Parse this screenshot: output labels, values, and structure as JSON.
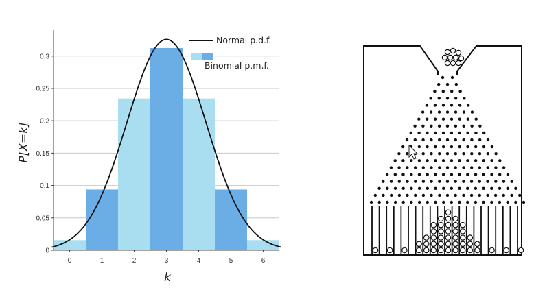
{
  "chart_data": {
    "type": "bar",
    "title": "",
    "xlabel": "k",
    "ylabel": "P[X=k]",
    "categories": [
      "0",
      "1",
      "2",
      "3",
      "4",
      "5",
      "6"
    ],
    "x": [
      0,
      1,
      2,
      3,
      4,
      5,
      6
    ],
    "xlim": [
      -0.5,
      6.5
    ],
    "ylim": [
      0,
      0.34
    ],
    "yticks": [
      0,
      0.05,
      0.1,
      0.15,
      0.2,
      0.25,
      0.3
    ],
    "ytick_labels": [
      "0",
      "0.05",
      "0.1",
      "0.15",
      "0.2",
      "0.25",
      "0.3"
    ],
    "grid": true,
    "series": [
      {
        "name": "Binomial p.m.f.",
        "kind": "bar",
        "values": [
          0.0156,
          0.0938,
          0.2344,
          0.3125,
          0.2344,
          0.0938,
          0.0156
        ],
        "colors": [
          "#a9def1",
          "#6aaee5",
          "#a9def1",
          "#6aaee5",
          "#a9def1",
          "#6aaee5",
          "#a9def1"
        ]
      },
      {
        "name": "Normal p.d.f.",
        "kind": "line",
        "mean": 3,
        "sd": 1.2247,
        "color": "#111111"
      }
    ],
    "legend": {
      "placement": "top-right",
      "entries": [
        "Normal p.d.f.",
        "Binomial p.m.f."
      ]
    }
  },
  "galton_board": {
    "kind": "illustration",
    "description_label": "Galton board",
    "peg_color": "#111111",
    "frame_color": "#111111"
  }
}
